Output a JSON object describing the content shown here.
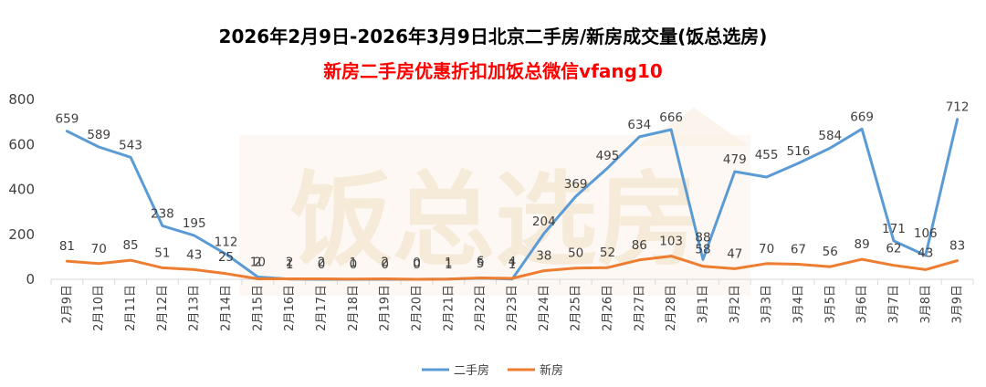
{
  "chart_data": {
    "type": "line",
    "title": "2026年2月9日-2026年3月9日北京二手房/新房成交量(饭总选房)",
    "subtitle": "新房二手房优惠折扣加饭总微信vfang10",
    "watermark": "饭总选房",
    "xlabel": "",
    "ylabel": "",
    "ylim": [
      0,
      800
    ],
    "yticks": [
      0,
      200,
      400,
      600,
      800
    ],
    "grid": false,
    "legend_position": "bottom-center",
    "categories": [
      "2月9日",
      "2月10日",
      "2月11日",
      "2月12日",
      "2月13日",
      "2月14日",
      "2月15日",
      "2月16日",
      "2月17日",
      "2月18日",
      "2月19日",
      "2月20日",
      "2月21日",
      "2月22日",
      "2月23日",
      "2月24日",
      "2月25日",
      "2月26日",
      "2月27日",
      "2月28日",
      "3月1日",
      "3月2日",
      "3月3日",
      "3月4日",
      "3月5日",
      "3月6日",
      "3月7日",
      "3月8日",
      "3月9日"
    ],
    "series": [
      {
        "name": "二手房",
        "color": "#5B9BD5",
        "values": [
          659,
          589,
          543,
          238,
          195,
          112,
          10,
          1,
          0,
          0,
          0,
          0,
          1,
          5,
          1,
          204,
          369,
          495,
          634,
          666,
          88,
          479,
          455,
          516,
          584,
          669,
          171,
          106,
          712
        ]
      },
      {
        "name": "新房",
        "color": "#ED7D31",
        "values": [
          81,
          70,
          85,
          51,
          43,
          25,
          2,
          2,
          2,
          1,
          2,
          0,
          1,
          6,
          4,
          38,
          50,
          52,
          86,
          103,
          58,
          47,
          70,
          67,
          56,
          89,
          62,
          43,
          83
        ]
      }
    ]
  }
}
